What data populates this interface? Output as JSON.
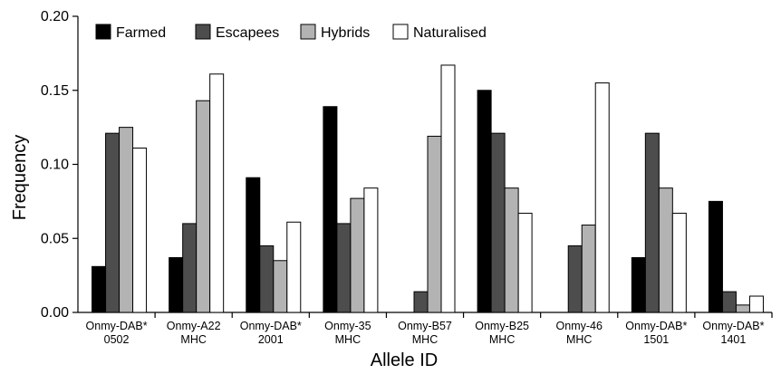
{
  "chart_data": {
    "type": "bar",
    "title": "",
    "xlabel": "Allele ID",
    "ylabel": "Frequency",
    "ylim": [
      0,
      0.2
    ],
    "yticks": [
      "0.00",
      "0.05",
      "0.10",
      "0.15",
      "0.20"
    ],
    "categories": [
      [
        "Onmy-DAB*",
        "0502"
      ],
      [
        "Onmy-A22",
        "MHC"
      ],
      [
        "Onmy-DAB*",
        "2001"
      ],
      [
        "Onmy-35",
        "MHC"
      ],
      [
        "Onmy-B57",
        "MHC"
      ],
      [
        "Onmy-B25",
        "MHC"
      ],
      [
        "Onmy-46",
        "MHC"
      ],
      [
        "Onmy-DAB*",
        "1501"
      ],
      [
        "Onmy-DAB*",
        "1401"
      ]
    ],
    "series": [
      {
        "name": "Farmed",
        "color": "#000000",
        "values": [
          0.031,
          0.037,
          0.091,
          0.139,
          0.0,
          0.15,
          0.0,
          0.037,
          0.075
        ]
      },
      {
        "name": "Escapees",
        "color": "#4d4d4d",
        "values": [
          0.121,
          0.06,
          0.045,
          0.06,
          0.014,
          0.121,
          0.045,
          0.121,
          0.014
        ]
      },
      {
        "name": "Hybrids",
        "color": "#b3b3b3",
        "values": [
          0.125,
          0.143,
          0.035,
          0.077,
          0.119,
          0.084,
          0.059,
          0.084,
          0.005
        ]
      },
      {
        "name": "Naturalised",
        "color": "#ffffff",
        "values": [
          0.111,
          0.161,
          0.061,
          0.084,
          0.167,
          0.067,
          0.155,
          0.067,
          0.011
        ]
      }
    ],
    "grid": false,
    "legend_position": "top-left"
  }
}
